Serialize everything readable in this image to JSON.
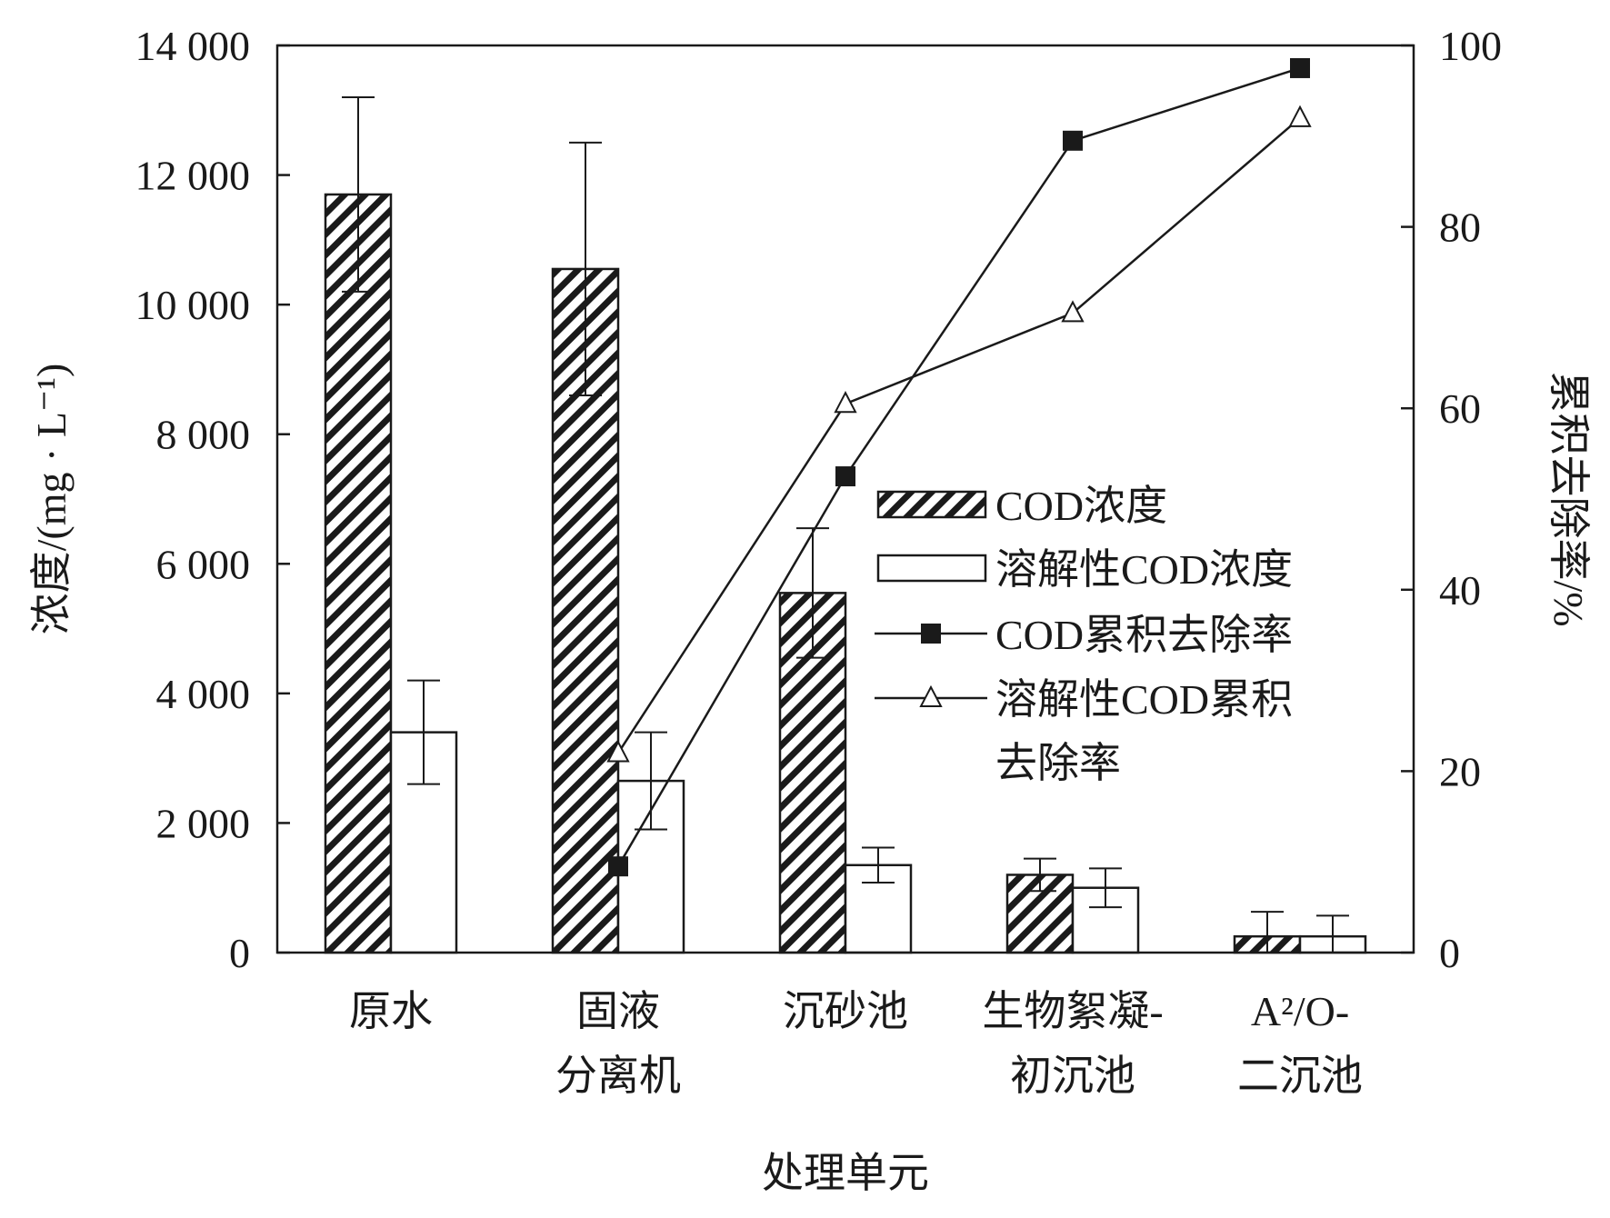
{
  "chart_data": {
    "type": "bar",
    "categories": [
      [
        "原水"
      ],
      [
        "固液",
        "分离机"
      ],
      [
        "沉砂池"
      ],
      [
        "生物絮凝-",
        "初沉池"
      ],
      [
        "A²/O-",
        "二沉池"
      ]
    ],
    "xlabel": "处理单元",
    "ylabel_left": "浓度/(mg · L⁻¹)",
    "ylabel_right": "累积去除率/%",
    "ylim_left": [
      0,
      14000
    ],
    "ylim_right": [
      0,
      100
    ],
    "yticks_left": [
      0,
      2000,
      4000,
      6000,
      8000,
      10000,
      12000,
      14000
    ],
    "ytick_labels_left": [
      "0",
      "2 000",
      "4 000",
      "6 000",
      "8 000",
      "10 000",
      "12 000",
      "14 000"
    ],
    "yticks_right": [
      0,
      20,
      40,
      60,
      80,
      100
    ],
    "ytick_labels_right": [
      "0",
      "20",
      "40",
      "60",
      "80",
      "100"
    ],
    "bar_series": [
      {
        "name": "COD浓度",
        "pattern": "hatched",
        "values": [
          11700,
          10550,
          5550,
          1200,
          250
        ],
        "errors": [
          1500,
          1950,
          1000,
          250,
          380
        ]
      },
      {
        "name": "溶解性COD浓度",
        "pattern": "open",
        "values": [
          3400,
          2650,
          1350,
          1000,
          250
        ],
        "errors": [
          800,
          750,
          270,
          300,
          320
        ]
      }
    ],
    "line_series": [
      {
        "name": "COD累积去除率",
        "marker": "filled-square",
        "x_index": [
          1,
          2,
          3,
          4
        ],
        "values": [
          9.5,
          52.5,
          89.5,
          97.5
        ]
      },
      {
        "name": "溶解性COD累积去除率",
        "marker": "open-triangle",
        "x_index": [
          1,
          2,
          3,
          4
        ],
        "values": [
          22,
          60.5,
          70.5,
          92
        ]
      }
    ],
    "legend": {
      "position": "center-right",
      "entries": [
        [
          "COD浓度"
        ],
        [
          "溶解性COD浓度"
        ],
        [
          "COD累积去除率"
        ],
        [
          "溶解性COD累积",
          "去除率"
        ]
      ]
    },
    "colors": {
      "ink": "#1a1a1a",
      "background": "#ffffff"
    }
  }
}
